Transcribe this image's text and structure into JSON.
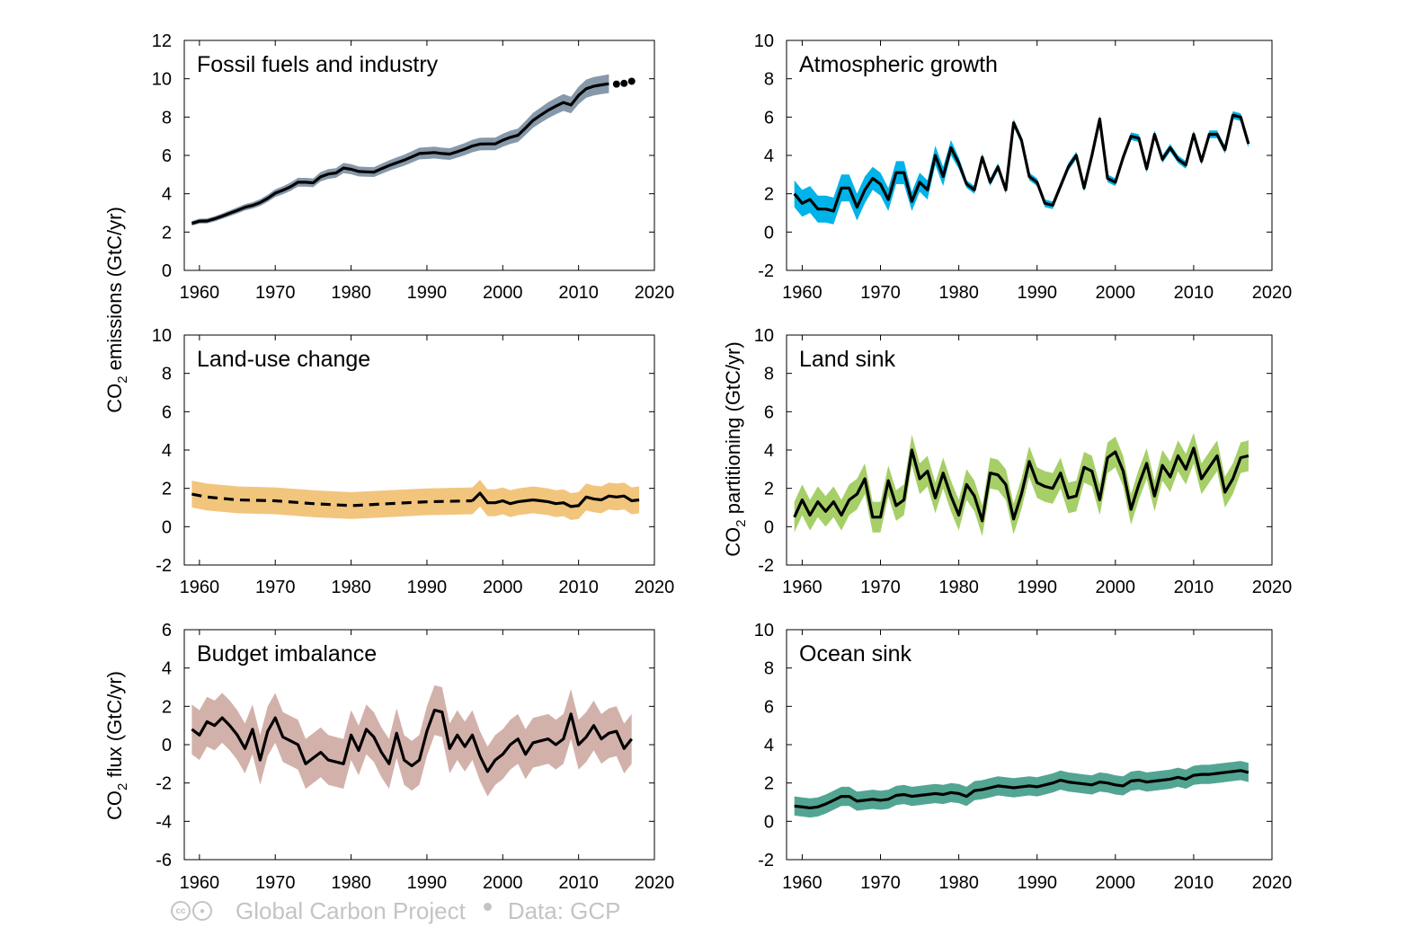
{
  "y_labels": {
    "left_top": {
      "pre": "CO",
      "sub": "2",
      "post": " emissions (GtC/yr)"
    },
    "left_bottom": {
      "pre": "CO",
      "sub": "2",
      "post": " flux (GtC/yr)"
    },
    "right": {
      "pre": "CO",
      "sub": "2",
      "post": " partitioning (GtC/yr)"
    }
  },
  "footer": {
    "license_icon": "cc-by-icon",
    "source": "Global Carbon Project",
    "data_credit": "Data: GCP"
  },
  "chart_data": [
    {
      "type": "line",
      "title": "Fossil fuels and industry",
      "xlim": [
        1958,
        2020
      ],
      "ylim": [
        0,
        12
      ],
      "xticks": [
        1960,
        1970,
        1980,
        1990,
        2000,
        2010,
        2020
      ],
      "yticks": [
        0,
        2,
        4,
        6,
        8,
        10,
        12
      ],
      "band_color": "#8699ab",
      "line_color": "#000000",
      "uncertainty": 0.05,
      "uncertainty_mode": "relative",
      "x_start": 1959,
      "values": [
        2.45,
        2.57,
        2.58,
        2.69,
        2.83,
        2.98,
        3.13,
        3.29,
        3.39,
        3.54,
        3.76,
        4.03,
        4.18,
        4.36,
        4.6,
        4.6,
        4.57,
        4.89,
        5.03,
        5.08,
        5.34,
        5.28,
        5.16,
        5.14,
        5.13,
        5.3,
        5.47,
        5.61,
        5.75,
        5.92,
        6.1,
        6.12,
        6.15,
        6.1,
        6.07,
        6.19,
        6.33,
        6.49,
        6.59,
        6.6,
        6.6,
        6.79,
        6.94,
        7.05,
        7.43,
        7.83,
        8.1,
        8.36,
        8.57,
        8.76,
        8.63,
        9.13,
        9.48,
        9.61,
        9.68,
        9.74
      ],
      "markers": [
        {
          "x": 2015,
          "y": 9.72
        },
        {
          "x": 2016,
          "y": 9.76
        },
        {
          "x": 2017,
          "y": 9.87
        }
      ]
    },
    {
      "type": "line",
      "title": "Atmospheric growth",
      "xlim": [
        1958,
        2020
      ],
      "ylim": [
        -2,
        10
      ],
      "xticks": [
        1960,
        1970,
        1980,
        1990,
        2000,
        2010,
        2020
      ],
      "yticks": [
        -2,
        0,
        2,
        4,
        6,
        8,
        10
      ],
      "band_color": "#00b3e8",
      "line_color": "#000000",
      "x_start": 1959,
      "values": [
        2.0,
        1.5,
        1.7,
        1.2,
        1.2,
        1.1,
        2.3,
        2.3,
        1.3,
        2.2,
        2.8,
        2.5,
        1.7,
        3.1,
        3.1,
        1.6,
        2.6,
        2.2,
        4.0,
        2.9,
        4.4,
        3.6,
        2.5,
        2.2,
        3.9,
        2.6,
        3.4,
        2.2,
        5.7,
        4.8,
        2.9,
        2.6,
        1.5,
        1.4,
        2.4,
        3.4,
        4.0,
        2.3,
        4.0,
        5.9,
        2.8,
        2.6,
        3.9,
        5.0,
        4.9,
        3.3,
        5.1,
        3.8,
        4.4,
        3.8,
        3.5,
        5.1,
        3.7,
        5.1,
        5.1,
        4.3,
        6.1,
        6.0,
        4.6
      ],
      "band_half_widths": [
        0.7,
        0.7,
        0.7,
        0.7,
        0.7,
        0.7,
        0.7,
        0.7,
        0.7,
        0.7,
        0.6,
        0.6,
        0.6,
        0.6,
        0.6,
        0.5,
        0.5,
        0.5,
        0.5,
        0.5,
        0.4,
        0.3,
        0.2,
        0.2,
        0.2,
        0.2,
        0.2,
        0.2,
        0.2,
        0.2,
        0.2,
        0.2,
        0.2,
        0.2,
        0.2,
        0.2,
        0.2,
        0.2,
        0.2,
        0.2,
        0.2,
        0.2,
        0.2,
        0.2,
        0.2,
        0.2,
        0.2,
        0.2,
        0.2,
        0.2,
        0.2,
        0.2,
        0.2,
        0.2,
        0.2,
        0.2,
        0.2,
        0.2,
        0.2
      ]
    },
    {
      "type": "line",
      "title": "Land-use change",
      "xlim": [
        1958,
        2020
      ],
      "ylim": [
        -2,
        10
      ],
      "xticks": [
        1960,
        1970,
        1980,
        1990,
        2000,
        2010,
        2020
      ],
      "yticks": [
        -2,
        0,
        2,
        4,
        6,
        8,
        10
      ],
      "band_color": "#f2c57d",
      "line_color": "#000000",
      "uncertainty": 0.7,
      "uncertainty_mode": "absolute",
      "dashed_segment": {
        "x": [
          1959,
          1961,
          1965,
          1970,
          1975,
          1980,
          1985,
          1990,
          1996
        ],
        "y": [
          1.7,
          1.55,
          1.4,
          1.35,
          1.2,
          1.1,
          1.2,
          1.3,
          1.35
        ]
      },
      "solid_segment": {
        "x_start": 1996,
        "values": [
          1.35,
          1.75,
          1.25,
          1.25,
          1.35,
          1.2,
          1.3,
          1.35,
          1.4,
          1.35,
          1.3,
          1.2,
          1.25,
          1.05,
          1.1,
          1.55,
          1.45,
          1.4,
          1.6,
          1.55,
          1.6,
          1.35,
          1.4
        ]
      }
    },
    {
      "type": "line",
      "title": "Land sink",
      "xlim": [
        1958,
        2020
      ],
      "ylim": [
        -2,
        10
      ],
      "xticks": [
        1960,
        1970,
        1980,
        1990,
        2000,
        2010,
        2020
      ],
      "yticks": [
        -2,
        0,
        2,
        4,
        6,
        8,
        10
      ],
      "band_color": "#a6cf68",
      "line_color": "#000000",
      "uncertainty": 0.8,
      "uncertainty_mode": "absolute",
      "x_start": 1959,
      "values": [
        0.5,
        1.4,
        0.6,
        1.3,
        0.8,
        1.3,
        0.6,
        1.4,
        1.7,
        2.5,
        0.5,
        0.5,
        2.4,
        1.1,
        1.4,
        4.0,
        2.5,
        2.9,
        1.5,
        2.8,
        1.6,
        0.6,
        2.2,
        1.6,
        0.3,
        2.8,
        2.7,
        2.2,
        0.4,
        1.7,
        3.4,
        2.3,
        2.1,
        2.0,
        2.8,
        1.5,
        1.6,
        3.1,
        2.9,
        1.4,
        3.6,
        3.9,
        2.9,
        0.9,
        2.2,
        3.3,
        1.6,
        3.2,
        2.6,
        3.7,
        3.0,
        4.1,
        2.5,
        3.1,
        3.7,
        1.8,
        2.5,
        3.6,
        3.7
      ]
    },
    {
      "type": "line",
      "title": "Budget imbalance",
      "xlim": [
        1958,
        2020
      ],
      "ylim": [
        -6,
        6
      ],
      "xticks": [
        1960,
        1970,
        1980,
        1990,
        2000,
        2010,
        2020
      ],
      "yticks": [
        -6,
        -4,
        -2,
        0,
        2,
        4,
        6
      ],
      "band_color": "#d3b1ab",
      "line_color": "#000000",
      "uncertainty": 1.3,
      "uncertainty_mode": "absolute",
      "x_start": 1959,
      "values": [
        0.8,
        0.5,
        1.2,
        1.0,
        1.4,
        1.0,
        0.5,
        -0.2,
        0.8,
        -0.8,
        0.7,
        1.4,
        0.4,
        0.2,
        0.0,
        -1.0,
        -0.7,
        -0.4,
        -0.8,
        -0.9,
        -1.0,
        0.5,
        -0.3,
        0.8,
        0.4,
        -0.4,
        -1.0,
        0.6,
        -0.8,
        -1.1,
        -0.8,
        0.7,
        1.8,
        1.7,
        -0.2,
        0.5,
        -0.1,
        0.5,
        -0.6,
        -1.4,
        -0.8,
        -0.5,
        0.0,
        0.3,
        -0.5,
        0.1,
        0.2,
        0.3,
        0.0,
        0.3,
        1.6,
        0.0,
        0.4,
        1.0,
        0.3,
        0.6,
        0.7,
        -0.2,
        0.3
      ]
    },
    {
      "type": "line",
      "title": "Ocean sink",
      "xlim": [
        1958,
        2020
      ],
      "ylim": [
        -2,
        10
      ],
      "xticks": [
        1960,
        1970,
        1980,
        1990,
        2000,
        2010,
        2020
      ],
      "yticks": [
        -2,
        0,
        2,
        4,
        6,
        8,
        10
      ],
      "band_color": "#52a592",
      "line_color": "#000000",
      "uncertainty": 0.5,
      "uncertainty_mode": "absolute",
      "x_start": 1959,
      "values": [
        0.8,
        0.75,
        0.7,
        0.75,
        0.9,
        1.1,
        1.3,
        1.3,
        1.05,
        1.1,
        1.15,
        1.1,
        1.15,
        1.35,
        1.4,
        1.3,
        1.35,
        1.4,
        1.45,
        1.4,
        1.5,
        1.45,
        1.3,
        1.6,
        1.65,
        1.75,
        1.85,
        1.8,
        1.75,
        1.8,
        1.85,
        1.8,
        1.9,
        2.0,
        2.15,
        2.05,
        2.0,
        1.95,
        1.9,
        2.05,
        2.0,
        1.9,
        1.85,
        2.1,
        2.15,
        2.05,
        2.1,
        2.15,
        2.2,
        2.3,
        2.2,
        2.4,
        2.45,
        2.45,
        2.5,
        2.55,
        2.6,
        2.65,
        2.55
      ]
    }
  ]
}
